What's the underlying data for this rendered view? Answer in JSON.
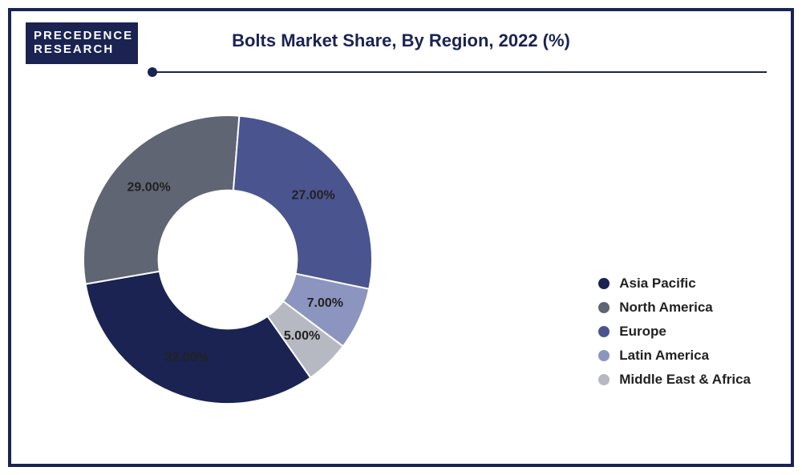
{
  "logo": {
    "line1": "PRECEDENCE",
    "line2": "RESEARCH"
  },
  "title": "Bolts Market Share, By Region, 2022 (%)",
  "chart": {
    "type": "donut",
    "background_color": "#ffffff",
    "border_color": "#1a2352",
    "start_angle_deg": 55,
    "inner_radius_ratio": 0.48,
    "label_fontsize": 16,
    "label_fontweight": "700",
    "slices": [
      {
        "name": "Asia Pacific",
        "value": 32.0,
        "label": "32.00%",
        "color": "#1a2352"
      },
      {
        "name": "North America",
        "value": 29.0,
        "label": "29.00%",
        "color": "#5f6573"
      },
      {
        "name": "Europe",
        "value": 27.0,
        "label": "27.00%",
        "color": "#4a548f"
      },
      {
        "name": "Latin America",
        "value": 7.0,
        "label": "7.00%",
        "color": "#8c95bf"
      },
      {
        "name": "Middle East & Africa",
        "value": 5.0,
        "label": "5.00%",
        "color": "#b6b9c2"
      }
    ]
  },
  "legend": {
    "fontsize": 17,
    "fontweight": "700",
    "text_color": "#222222",
    "items": [
      {
        "label": "Asia Pacific",
        "color": "#1a2352"
      },
      {
        "label": "North America",
        "color": "#5f6573"
      },
      {
        "label": "Europe",
        "color": "#4a548f"
      },
      {
        "label": "Latin America",
        "color": "#8c95bf"
      },
      {
        "label": "Middle East & Africa",
        "color": "#b6b9c2"
      }
    ]
  }
}
